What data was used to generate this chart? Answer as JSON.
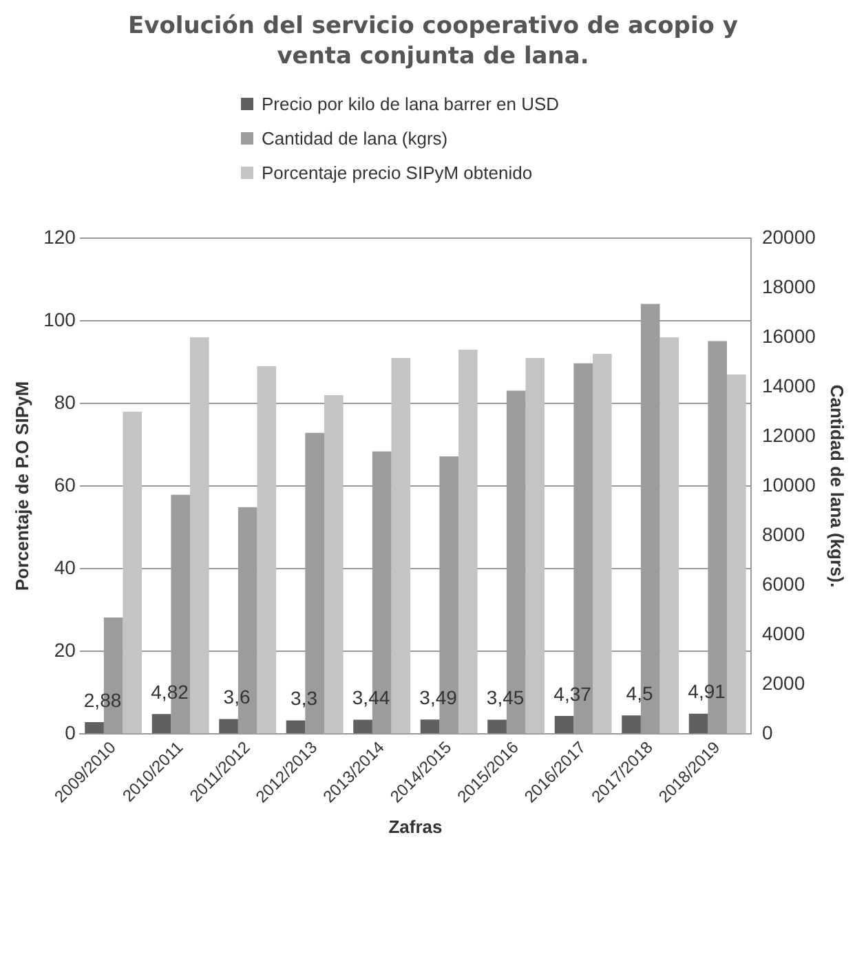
{
  "chart_data": {
    "type": "bar",
    "title": "Evolución  del servicio cooperativo de acopio y venta conjunta de lana.",
    "xlabel": "Zafras",
    "ylabel": "Porcentaje de P.O SIPyM",
    "y2label": "Cantidad de lana (kgrs).",
    "categories": [
      "2009/2010",
      "2010/2011",
      "2011/2012",
      "2012/2013",
      "2013/2014",
      "2014/2015",
      "2015/2016",
      "2016/2017",
      "2017/2018",
      "2018/2019"
    ],
    "series": [
      {
        "name": "Precio por kilo de lana barrer en USD",
        "color": "#606060",
        "values": [
          2.88,
          4.82,
          3.6,
          3.3,
          3.44,
          3.49,
          3.45,
          4.37,
          4.5,
          4.91
        ],
        "value_labels": [
          "2,88",
          "4,82",
          "3,6",
          "3,3",
          "3,44",
          "3,49",
          "3,45",
          "4,37",
          "4,5",
          "4,91"
        ]
      },
      {
        "name": "Cantidad de lana (kgrs)",
        "color": "#9c9c9c",
        "axis": "y2",
        "values": [
          4700,
          9650,
          9150,
          12150,
          11400,
          11200,
          13850,
          14950,
          17350,
          15850
        ]
      },
      {
        "name": "Porcentaje precio SIPyM obtenido",
        "color": "#c4c4c4",
        "values": [
          78,
          96,
          89,
          82,
          91,
          93,
          91,
          92,
          96,
          87
        ]
      }
    ],
    "ylim": [
      0,
      120
    ],
    "yticks": [
      0,
      20,
      40,
      60,
      80,
      100,
      120
    ],
    "y2lim": [
      0,
      20000
    ],
    "y2ticks": [
      0,
      2000,
      4000,
      6000,
      8000,
      10000,
      12000,
      14000,
      16000,
      18000,
      20000
    ],
    "grid": "y",
    "legend": "top"
  }
}
